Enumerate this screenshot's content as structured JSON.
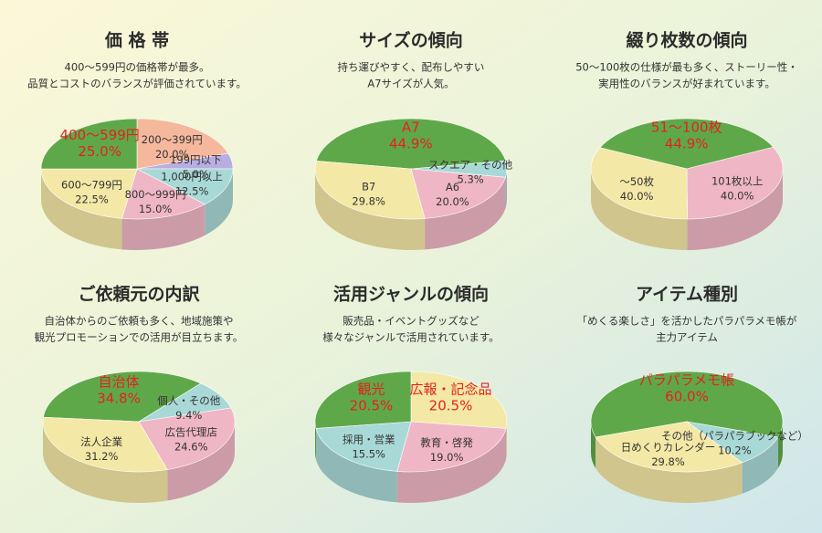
{
  "chart_data": [
    {
      "type": "pie",
      "title": "価 格 帯",
      "subtitle": [
        "400〜599円の価格帯が最多。",
        "品質とコストのバランスが評価されています。"
      ],
      "categories": [
        "200〜399円",
        "199円以下",
        "1,000円以上",
        "800〜999円",
        "600〜799円",
        "400〜599円"
      ],
      "values": [
        20.0,
        5.0,
        12.5,
        15.0,
        22.5,
        25.0
      ],
      "value_labels": [
        "20.0%",
        "5.0%",
        "12.5%",
        "15.0%",
        "22.5%",
        "25.0%"
      ],
      "colors": [
        "#f5b89c",
        "#b9aee0",
        "#a8d9d6",
        "#efb6c6",
        "#f4e8a6",
        "#5fa84a"
      ]
    },
    {
      "type": "pie",
      "title": "サイズの傾向",
      "subtitle": [
        "持ち運びやすく、配布しやすい",
        "A7サイズが人気。"
      ],
      "categories": [
        "A7",
        "スクエア・その他",
        "A6",
        "B7"
      ],
      "values": [
        44.9,
        5.3,
        20.0,
        29.8
      ],
      "value_labels": [
        "44.9%",
        "5.3%",
        "20.0%",
        "29.8%"
      ],
      "colors": [
        "#5fa84a",
        "#a8d9d6",
        "#efb6c6",
        "#f4e8a6"
      ]
    },
    {
      "type": "pie",
      "title": "綴り枚数の傾向",
      "subtitle": [
        "50〜100枚の仕様が最も多く、ストーリー性・",
        "実用性のバランスが好まれています。"
      ],
      "categories": [
        "51〜100枚",
        "101枚以上",
        "〜50枚"
      ],
      "values": [
        44.9,
        40.0,
        40.0
      ],
      "value_labels": [
        "44.9%",
        "40.0%",
        "40.0%"
      ],
      "colors": [
        "#5fa84a",
        "#efb6c6",
        "#f4e8a6"
      ]
    },
    {
      "type": "pie",
      "title": "ご依頼元の内訳",
      "subtitle": [
        "自治体からのご依頼も多く、地域施策や",
        "観光プロモーションでの活用が目立ちます。"
      ],
      "categories": [
        "自治体",
        "個人・その他",
        "広告代理店",
        "法人企業"
      ],
      "values": [
        34.8,
        9.4,
        24.6,
        31.2
      ],
      "value_labels": [
        "34.8%",
        "9.4%",
        "24.6%",
        "31.2%"
      ],
      "colors": [
        "#5fa84a",
        "#a8d9d6",
        "#efb6c6",
        "#f4e8a6"
      ]
    },
    {
      "type": "pie",
      "title": "活用ジャンルの傾向",
      "subtitle": [
        "販売品・イベントグッズなど",
        "様々なジャンルで活用されています。"
      ],
      "categories": [
        "広報・記念品",
        "教育・啓発",
        "採用・営業",
        "観光"
      ],
      "values": [
        20.5,
        19.0,
        15.5,
        20.5
      ],
      "value_labels": [
        "20.5%",
        "19.0%",
        "15.5%",
        "20.5%"
      ],
      "colors": [
        "#f4e8a6",
        "#efb6c6",
        "#a8d9d6",
        "#5fa84a"
      ]
    },
    {
      "type": "pie",
      "title": "アイテム種別",
      "subtitle": [
        "「めくる楽しさ」を活かしたパラパラメモ帳が",
        "主力アイテム"
      ],
      "categories": [
        "パラパラメモ帳",
        "その他（パラパラブックなど）",
        "日めくりカレンダー"
      ],
      "values": [
        60.0,
        10.2,
        29.8
      ],
      "value_labels": [
        "60.0%",
        "10.2%",
        "29.8%"
      ],
      "colors": [
        "#5fa84a",
        "#a8d9d6",
        "#f4e8a6"
      ]
    }
  ]
}
